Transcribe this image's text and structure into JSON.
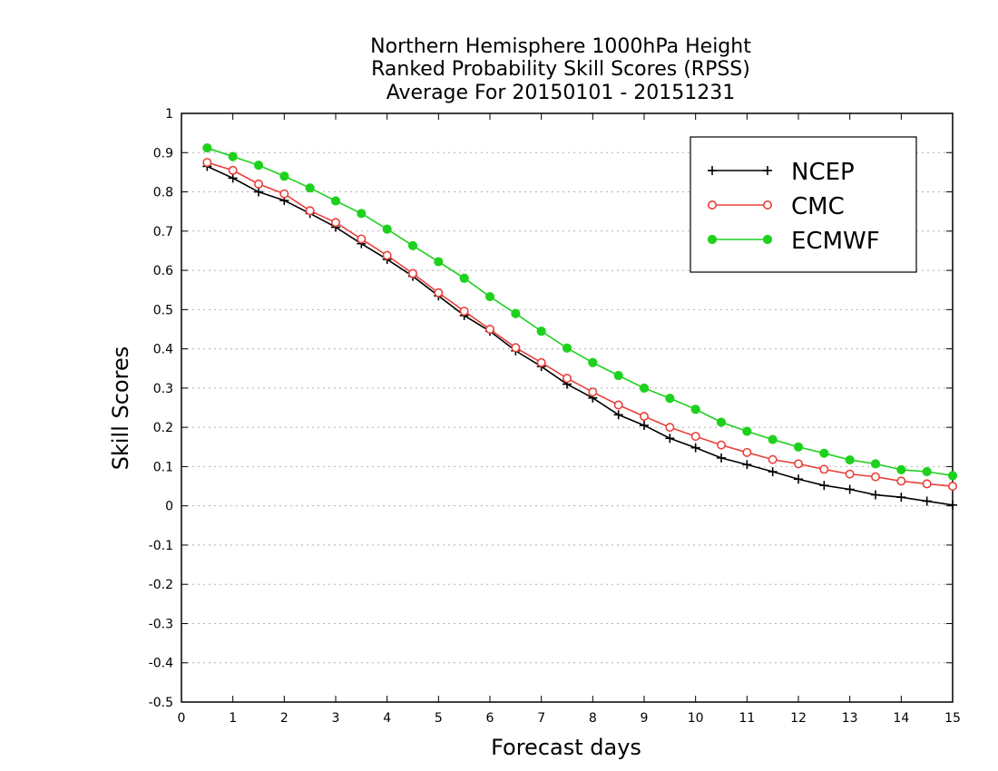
{
  "chart_data": {
    "type": "line",
    "title_lines": [
      "Northern Hemisphere 1000hPa Height",
      "Ranked Probability Skill Scores (RPSS)",
      "Average For 20150101 - 20151231"
    ],
    "xlabel": "Forecast days",
    "ylabel": "Skill Scores",
    "xlim": [
      0,
      15
    ],
    "ylim": [
      -0.5,
      1
    ],
    "x_ticks": [
      "0",
      "1",
      "2",
      "3",
      "4",
      "5",
      "6",
      "7",
      "8",
      "9",
      "10",
      "11",
      "12",
      "13",
      "14",
      "15"
    ],
    "y_ticks": [
      "1",
      "0.9",
      "0.8",
      "0.7",
      "0.6",
      "0.5",
      "0.4",
      "0.3",
      "0.2",
      "0.1",
      "0",
      "-0.1",
      "-0.2",
      "-0.3",
      "-0.4",
      "-0.5"
    ],
    "grid": "horizontal dotted",
    "legend_position": "top-right",
    "x": [
      0.5,
      1,
      1.5,
      2,
      2.5,
      3,
      3.5,
      4,
      4.5,
      5,
      5.5,
      6,
      6.5,
      7,
      7.5,
      8,
      8.5,
      9,
      9.5,
      10,
      10.5,
      11,
      11.5,
      12,
      12.5,
      13,
      13.5,
      14,
      14.5,
      15
    ],
    "series": [
      {
        "name": "NCEP",
        "color": "#000000",
        "marker": "plus",
        "values": [
          0.865,
          0.835,
          0.8,
          0.778,
          0.745,
          0.71,
          0.668,
          0.628,
          0.585,
          0.535,
          0.485,
          0.445,
          0.395,
          0.355,
          0.31,
          0.275,
          0.232,
          0.205,
          0.172,
          0.148,
          0.122,
          0.105,
          0.087,
          0.068,
          0.052,
          0.042,
          0.028,
          0.022,
          0.012,
          0.002
        ]
      },
      {
        "name": "CMC",
        "color": "#e8413a",
        "marker": "open-circle",
        "values": [
          0.875,
          0.855,
          0.82,
          0.795,
          0.752,
          0.722,
          0.68,
          0.638,
          0.592,
          0.543,
          0.496,
          0.45,
          0.403,
          0.365,
          0.325,
          0.29,
          0.257,
          0.228,
          0.2,
          0.177,
          0.155,
          0.136,
          0.118,
          0.107,
          0.093,
          0.081,
          0.074,
          0.063,
          0.056,
          0.05
        ]
      },
      {
        "name": "ECMWF",
        "color": "#1fd11f",
        "marker": "filled-circle",
        "values": [
          0.912,
          0.89,
          0.868,
          0.84,
          0.81,
          0.777,
          0.745,
          0.705,
          0.663,
          0.622,
          0.58,
          0.533,
          0.49,
          0.445,
          0.402,
          0.365,
          0.332,
          0.3,
          0.274,
          0.246,
          0.213,
          0.19,
          0.169,
          0.15,
          0.134,
          0.117,
          0.107,
          0.092,
          0.087,
          0.077
        ]
      }
    ]
  }
}
